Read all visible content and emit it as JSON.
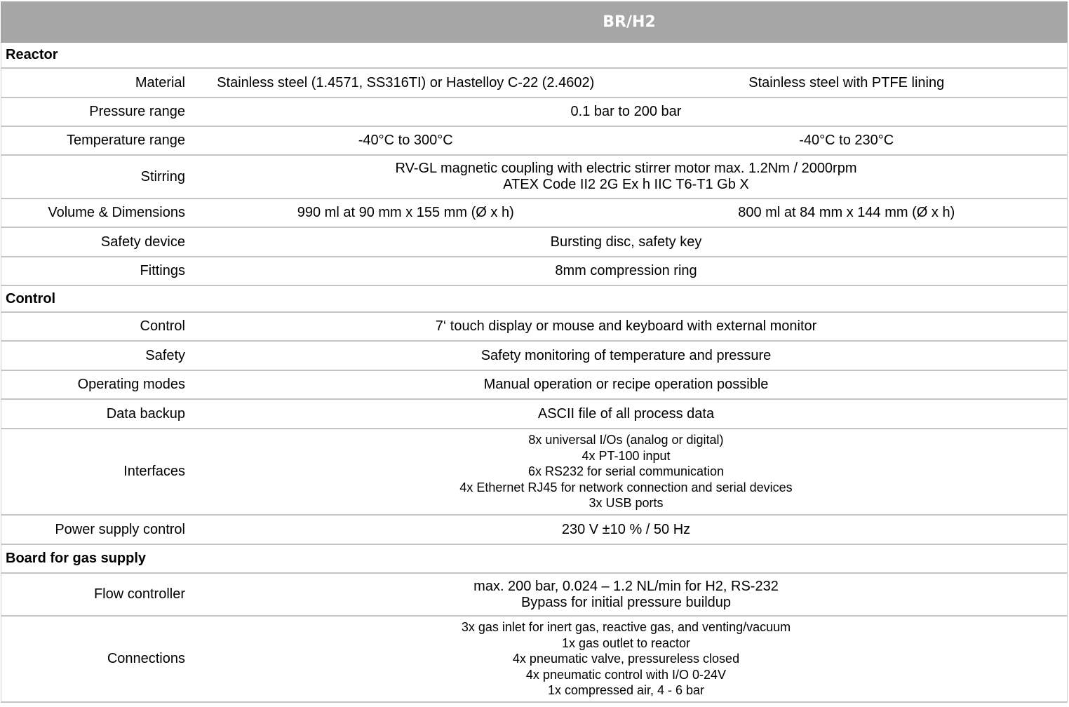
{
  "header": {
    "title": "BR/H2"
  },
  "sections": [
    {
      "title": "Reactor",
      "rows": [
        {
          "label": "Material",
          "cols": [
            "Stainless steel (1.4571, SS316TI) or Hastelloy C-22 (2.4602)",
            "Stainless steel with PTFE lining"
          ]
        },
        {
          "label": "Pressure range",
          "lines": [
            "0.1 bar to 200 bar"
          ]
        },
        {
          "label": "Temperature range",
          "cols": [
            "-40°C to 300°C",
            "-40°C to 230°C"
          ]
        },
        {
          "label": "Stirring",
          "lines": [
            "RV-GL magnetic coupling  with electric stirrer motor  max. 1.2Nm / 2000rpm",
            "ATEX Code II2 2G Ex h IIC T6-T1 Gb X"
          ]
        },
        {
          "label": "Volume & Dimensions",
          "cols": [
            "990 ml at 90 mm x 155 mm (Ø x h)",
            "800 ml at 84 mm x 144 mm (Ø x h)"
          ]
        },
        {
          "label": "Safety device",
          "lines": [
            "Bursting disc, safety key"
          ]
        },
        {
          "label": "Fittings",
          "lines": [
            "8mm compression ring"
          ]
        }
      ]
    },
    {
      "title": "Control",
      "rows": [
        {
          "label": "Control",
          "lines": [
            "7‘ touch display or mouse and keyboard with external monitor"
          ]
        },
        {
          "label": "Safety",
          "lines": [
            "Safety monitoring of temperature and pressure"
          ]
        },
        {
          "label": "Operating modes",
          "lines": [
            "Manual operation or recipe operation possible"
          ]
        },
        {
          "label": "Data backup",
          "lines": [
            "ASCII file of all process data"
          ]
        },
        {
          "label": "Interfaces",
          "small": true,
          "lines": [
            "8x universal I/Os (analog or digital)",
            "4x PT-100 input",
            "6x RS232 for serial communication",
            "4x Ethernet RJ45 for network connection and serial devices",
            "3x USB ports"
          ]
        },
        {
          "label": "Power supply control",
          "lines": [
            "230 V ±10 % / 50 Hz"
          ]
        }
      ]
    },
    {
      "title": "Board for gas supply",
      "rows": [
        {
          "label": "Flow controller",
          "lines": [
            "max. 200 bar, 0.024 – 1.2 NL/min for H2, RS-232",
            "Bypass for initial pressure buildup"
          ]
        },
        {
          "label": "Connections",
          "small": true,
          "lines": [
            "3x gas inlet for inert gas, reactive gas, and venting/vacuum",
            "1x gas outlet to reactor",
            "4x pneumatic valve, pressureless closed",
            "4x pneumatic control with I/O 0-24V",
            "1x compressed air, 4 - 6 bar"
          ]
        }
      ]
    }
  ]
}
